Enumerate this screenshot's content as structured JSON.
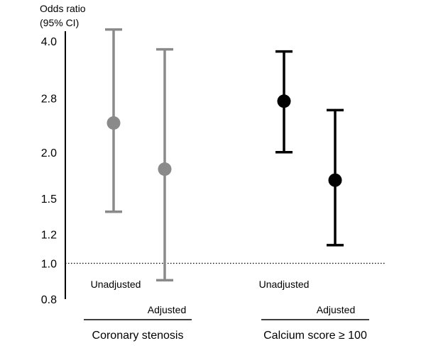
{
  "chart_data": {
    "type": "forest",
    "y_scale": "log",
    "ylabel_line1": "Odds ratio",
    "ylabel_line2": "(95% CI)",
    "ylim": [
      0.8,
      4.4
    ],
    "yticks": [
      {
        "value": 0.8,
        "label": "0.8"
      },
      {
        "value": 1.0,
        "label": "1.0"
      },
      {
        "value": 1.2,
        "label": "1.2"
      },
      {
        "value": 1.5,
        "label": "1.5"
      },
      {
        "value": 2.0,
        "label": "2.0"
      },
      {
        "value": 2.8,
        "label": "2.8"
      },
      {
        "value": 4.0,
        "label": "4.0"
      }
    ],
    "reference_line": 1.0,
    "groups": [
      {
        "name": "Coronary stenosis",
        "color": "#8a8a8a",
        "estimates": [
          {
            "label": "Unadjusted",
            "or": 2.4,
            "ci_low": 1.38,
            "ci_high": 4.3
          },
          {
            "label": "Adjusted",
            "or": 1.8,
            "ci_low": 0.9,
            "ci_high": 3.8
          }
        ]
      },
      {
        "name": "Calcium score ≥ 100",
        "color": "#000000",
        "estimates": [
          {
            "label": "Unadjusted",
            "or": 2.75,
            "ci_low": 2.0,
            "ci_high": 3.75
          },
          {
            "label": "Adjusted",
            "or": 1.68,
            "ci_low": 1.12,
            "ci_high": 2.6
          }
        ]
      }
    ]
  }
}
